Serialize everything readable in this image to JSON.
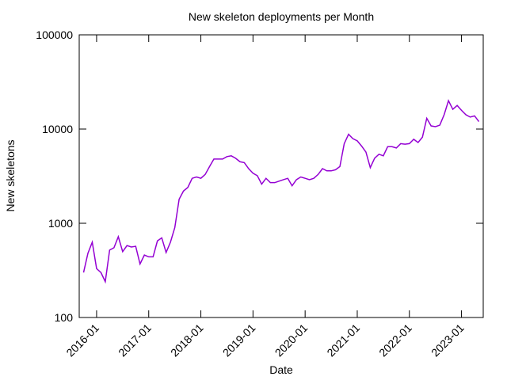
{
  "chart_data": {
    "type": "line",
    "title": "New skeleton deployments per Month",
    "x_label": "Date",
    "y_label": "New skeletons",
    "color": "#9400d3",
    "log_y": true,
    "grid": false,
    "x": [
      "2015-10",
      "2015-11",
      "2015-12",
      "2016-01",
      "2016-02",
      "2016-03",
      "2016-04",
      "2016-05",
      "2016-06",
      "2016-07",
      "2016-08",
      "2016-09",
      "2016-10",
      "2016-11",
      "2016-12",
      "2017-01",
      "2017-02",
      "2017-03",
      "2017-04",
      "2017-05",
      "2017-06",
      "2017-07",
      "2017-08",
      "2017-09",
      "2017-10",
      "2017-11",
      "2017-12",
      "2018-01",
      "2018-02",
      "2018-03",
      "2018-04",
      "2018-05",
      "2018-06",
      "2018-07",
      "2018-08",
      "2018-09",
      "2018-10",
      "2018-11",
      "2018-12",
      "2019-01",
      "2019-02",
      "2019-03",
      "2019-04",
      "2019-05",
      "2019-06",
      "2019-07",
      "2019-08",
      "2019-09",
      "2019-10",
      "2019-11",
      "2019-12",
      "2020-01",
      "2020-02",
      "2020-03",
      "2020-04",
      "2020-05",
      "2020-06",
      "2020-07",
      "2020-08",
      "2020-09",
      "2020-10",
      "2020-11",
      "2020-12",
      "2021-01",
      "2021-02",
      "2021-03",
      "2021-04",
      "2021-05",
      "2021-06",
      "2021-07",
      "2021-08",
      "2021-09",
      "2021-10",
      "2021-11",
      "2021-12",
      "2022-01",
      "2022-02",
      "2022-03",
      "2022-04",
      "2022-05",
      "2022-06",
      "2022-07",
      "2022-08",
      "2022-09",
      "2022-10",
      "2022-11",
      "2022-12",
      "2023-01",
      "2023-02",
      "2023-03",
      "2023-04",
      "2023-05"
    ],
    "values": [
      300,
      480,
      630,
      330,
      300,
      240,
      520,
      550,
      720,
      500,
      580,
      560,
      570,
      370,
      460,
      440,
      440,
      650,
      700,
      490,
      630,
      900,
      1800,
      2200,
      2400,
      3000,
      3100,
      3000,
      3300,
      4000,
      4800,
      4800,
      4800,
      5100,
      5200,
      4900,
      4500,
      4400,
      3800,
      3400,
      3200,
      2600,
      3000,
      2700,
      2700,
      2800,
      2900,
      3000,
      2500,
      2900,
      3100,
      3000,
      2900,
      3000,
      3300,
      3800,
      3600,
      3600,
      3700,
      4000,
      7000,
      8800,
      7900,
      7500,
      6600,
      5700,
      3900,
      4900,
      5400,
      5200,
      6500,
      6500,
      6300,
      7000,
      6900,
      7000,
      7800,
      7200,
      8200,
      13000,
      10800,
      10600,
      11000,
      14200,
      20000,
      16200,
      17800,
      15800,
      14200,
      13400,
      13800,
      12000
    ],
    "xlim": [
      "2015-09",
      "2023-06"
    ],
    "xticks": [
      "2016-01",
      "2017-01",
      "2018-01",
      "2019-01",
      "2020-01",
      "2021-01",
      "2022-01",
      "2023-01"
    ],
    "ylim": [
      100,
      100000
    ],
    "yticks": [
      100,
      1000,
      10000,
      100000
    ]
  }
}
